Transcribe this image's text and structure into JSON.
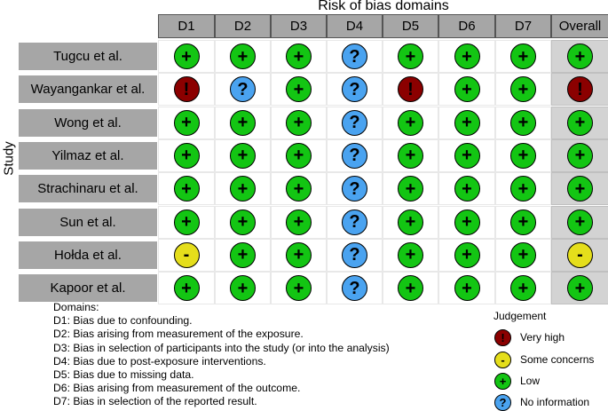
{
  "title": "Risk of bias domains",
  "ylabel": "Study",
  "columns": [
    "D1",
    "D2",
    "D3",
    "D4",
    "D5",
    "D6",
    "D7",
    "Overall"
  ],
  "studies": [
    {
      "name": "Tugcu et al.",
      "judgements": [
        "low",
        "low",
        "low",
        "ni",
        "low",
        "low",
        "low",
        "low"
      ]
    },
    {
      "name": "Wayangankar et al.",
      "judgements": [
        "high",
        "ni",
        "low",
        "ni",
        "high",
        "low",
        "low",
        "high"
      ]
    },
    {
      "name": "Wong et al.",
      "judgements": [
        "low",
        "low",
        "low",
        "ni",
        "low",
        "low",
        "low",
        "low"
      ]
    },
    {
      "name": "Yilmaz et al.",
      "judgements": [
        "low",
        "low",
        "low",
        "ni",
        "low",
        "low",
        "low",
        "low"
      ]
    },
    {
      "name": "Strachinaru et al.",
      "judgements": [
        "low",
        "low",
        "low",
        "ni",
        "low",
        "low",
        "low",
        "low"
      ]
    },
    {
      "name": "Sun et al.",
      "judgements": [
        "low",
        "low",
        "low",
        "ni",
        "low",
        "low",
        "low",
        "low"
      ]
    },
    {
      "name": "Hołda et al.",
      "judgements": [
        "some",
        "low",
        "low",
        "ni",
        "low",
        "low",
        "low",
        "some"
      ]
    },
    {
      "name": "Kapoor et al.",
      "judgements": [
        "low",
        "low",
        "low",
        "ni",
        "low",
        "low",
        "low",
        "low"
      ]
    }
  ],
  "symbols": {
    "high": "!",
    "some": "-",
    "low": "+",
    "ni": "?"
  },
  "colors": {
    "high": "#8b0000",
    "some": "#e5de1b",
    "low": "#13c513",
    "ni": "#4aa3f0",
    "header": "#a6a6a6",
    "overall_bg": "#d3d3d3"
  },
  "domains_legend": {
    "heading": "Domains:",
    "items": [
      "D1: Bias due to confounding.",
      "D2: Bias arising from measurement of the exposure.",
      "D3: Bias in selection of participants into the study (or into the analysis)",
      "D4: Bias due to post-exposure interventions.",
      "D5: Bias due to missing data.",
      "D6: Bias arising from measurement of the outcome.",
      "D7: Bias in selection of the reported result."
    ]
  },
  "judgement_legend": {
    "heading": "Judgement",
    "items": [
      {
        "key": "high",
        "label": "Very high"
      },
      {
        "key": "some",
        "label": "Some concerns"
      },
      {
        "key": "low",
        "label": "Low"
      },
      {
        "key": "ni",
        "label": "No information"
      }
    ]
  }
}
